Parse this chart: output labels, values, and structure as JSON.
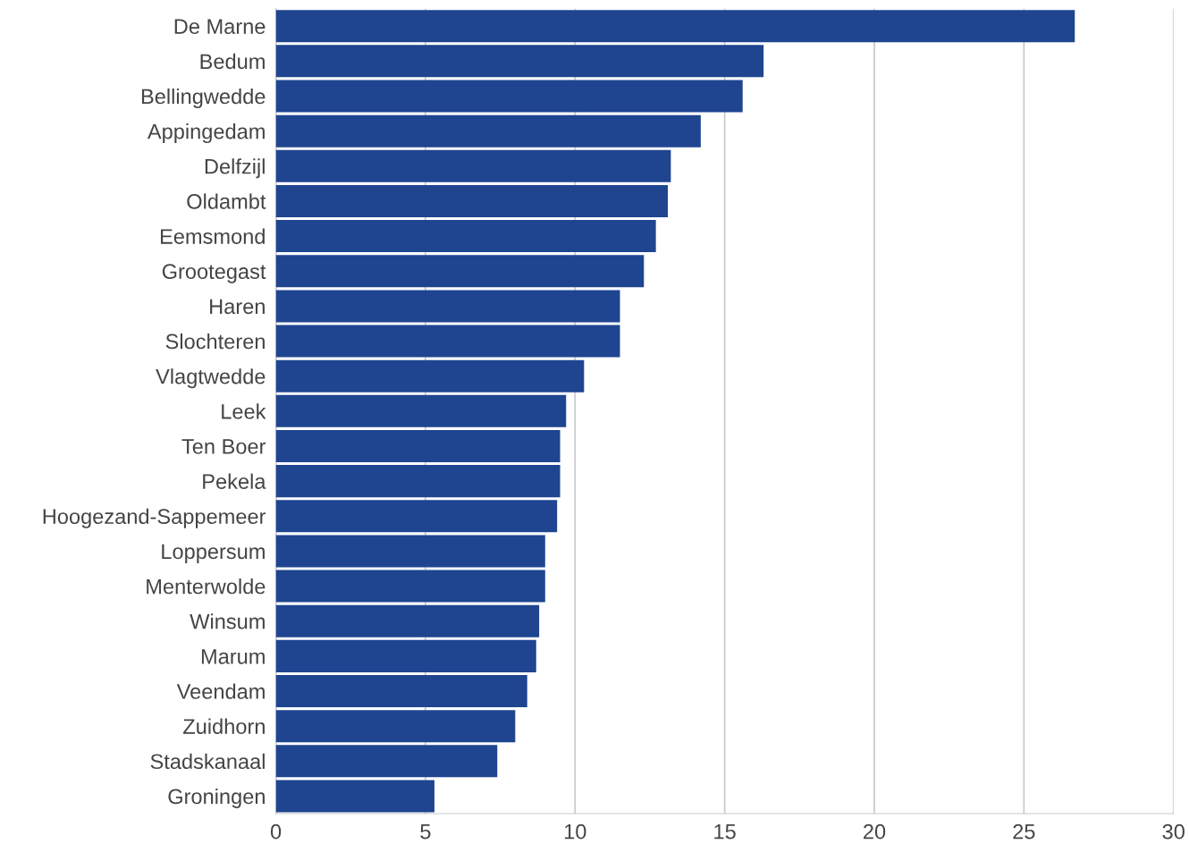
{
  "chart_data": {
    "type": "bar",
    "orientation": "horizontal",
    "categories": [
      "De Marne",
      "Bedum",
      "Bellingwedde",
      "Appingedam",
      "Delfzijl",
      "Oldambt",
      "Eemsmond",
      "Grootegast",
      "Haren",
      "Slochteren",
      "Vlagtwedde",
      "Leek",
      "Ten Boer",
      "Pekela",
      "Hoogezand-Sappemeer",
      "Loppersum",
      "Menterwolde",
      "Winsum",
      "Marum",
      "Veendam",
      "Zuidhorn",
      "Stadskanaal",
      "Groningen"
    ],
    "values": [
      26.7,
      16.3,
      15.6,
      14.2,
      13.2,
      13.1,
      12.7,
      12.3,
      11.5,
      11.5,
      10.3,
      9.7,
      9.5,
      9.5,
      9.4,
      9.0,
      9.0,
      8.8,
      8.7,
      8.4,
      8.0,
      7.4,
      5.3
    ],
    "color": "#1f4590",
    "xlim": [
      0,
      30
    ],
    "xticks": [
      0,
      5,
      10,
      15,
      20,
      25,
      30
    ],
    "grid": "x"
  }
}
